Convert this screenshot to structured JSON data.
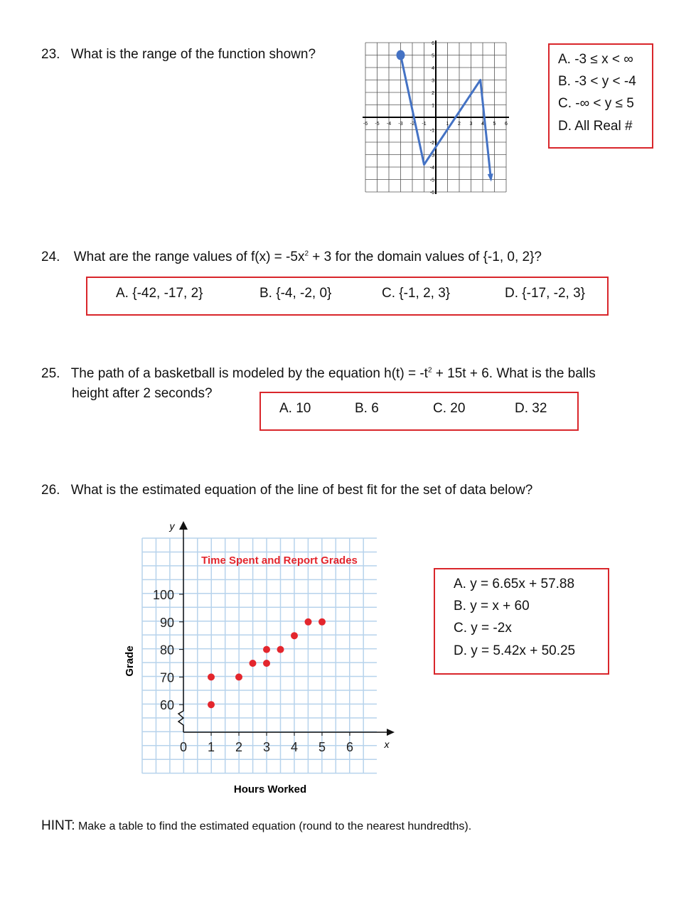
{
  "q23": {
    "number": "23.",
    "text": "What is the range of the function shown?",
    "choices": [
      "A.  -3 ≤ x < ∞",
      "B.  -3 < y < -4",
      "C.  -∞ < y ≤ 5",
      "D.  All Real #"
    ],
    "graph": {
      "x_ticks": [
        -6,
        -5,
        -4,
        -3,
        -2,
        -1,
        1,
        2,
        3,
        4,
        5,
        6
      ],
      "y_ticks": [
        6,
        5,
        4,
        3,
        2,
        1,
        -1,
        -2,
        -3,
        -4,
        -5,
        -6
      ],
      "path": [
        [
          -3,
          5
        ],
        [
          -1,
          -3.8
        ],
        [
          3.8,
          3
        ],
        [
          4.7,
          -5
        ]
      ],
      "start": "closed-dot",
      "end": "arrow",
      "color": "#4472c4"
    }
  },
  "q24": {
    "number": "24.",
    "text_before": "What are the range values of f(x) = -5x",
    "exponent": "2",
    "text_after": " + 3 for the domain values of {-1, 0, 2}?",
    "choices": [
      "A.  {-42, -17, 2}",
      "B. {-4, -2, 0}",
      "C. {-1, 2, 3}",
      "D. {-17, -2, 3}"
    ]
  },
  "q25": {
    "number": "25.",
    "text_before": "The path of a basketball is modeled by the equation h(t) = -t",
    "exponent": "2",
    "text_after": " + 15t + 6. What is the balls",
    "text_line2": "height after 2 seconds?",
    "choices": [
      "A.  10",
      "B. 6",
      "C. 20",
      "D. 32"
    ]
  },
  "q26": {
    "number": "26.",
    "text": "What is the estimated equation of the line of best fit for the set of data below?",
    "choices": [
      "A.  y = 6.65x + 57.88",
      "B.  y = x + 60",
      "C.  y = -2x",
      "D.  y = 5.42x + 50.25"
    ]
  },
  "chart_data": {
    "type": "scatter",
    "title": "Time Spent and Report Grades",
    "xlabel": "Hours Worked",
    "ylabel": "Grade",
    "x_axis_letter": "x",
    "y_axis_letter": "y",
    "x_ticks": [
      "0",
      "1",
      "2",
      "3",
      "4",
      "5",
      "6"
    ],
    "y_ticks": [
      "60",
      "70",
      "80",
      "90",
      "100"
    ],
    "xlim": [
      0,
      7
    ],
    "ylim": [
      50,
      120
    ],
    "y_axis_break": true,
    "grid": true,
    "point_color": "#e3262d",
    "title_color": "#e3262d",
    "points": [
      [
        1,
        60
      ],
      [
        1,
        70
      ],
      [
        2,
        70
      ],
      [
        2.5,
        75
      ],
      [
        3,
        75
      ],
      [
        3,
        80
      ],
      [
        3.5,
        80
      ],
      [
        4,
        85
      ],
      [
        4.5,
        90
      ],
      [
        5,
        90
      ]
    ]
  },
  "hint": {
    "label": "HINT:",
    "text": " Make a table to find the estimated equation (round to the nearest hundredths)."
  }
}
